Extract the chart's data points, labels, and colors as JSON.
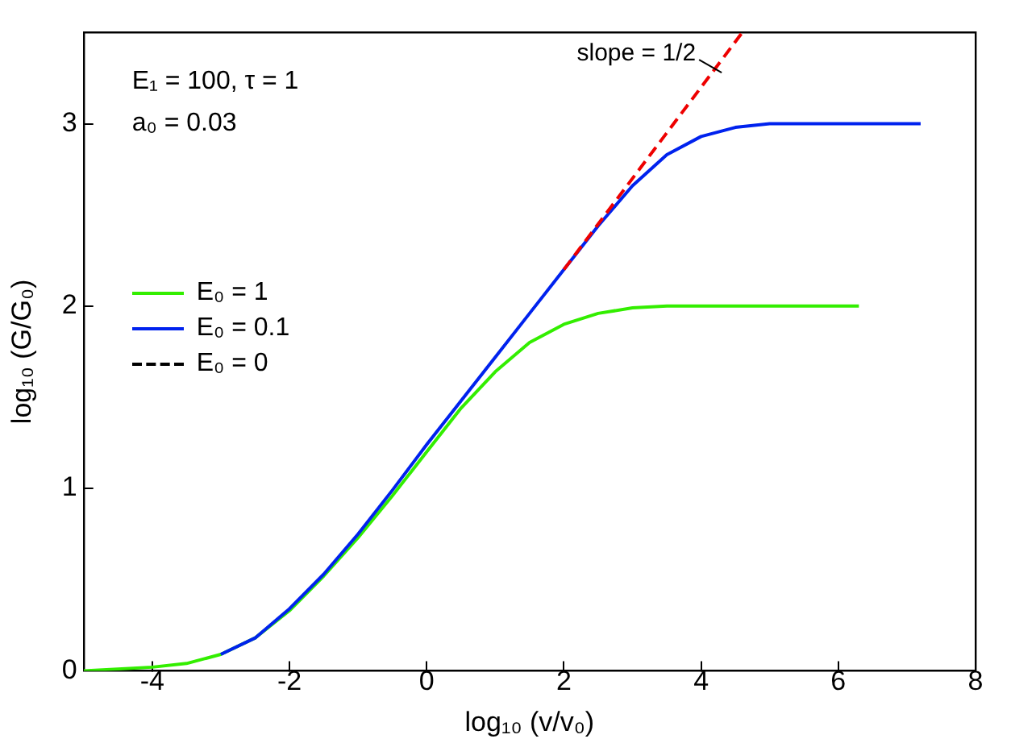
{
  "chart_data": {
    "type": "line",
    "xlabel": "log₁₀ (v/v₀)",
    "ylabel": "log₁₀ (G/G₀)",
    "xlim": [
      -5,
      8
    ],
    "xticks": [
      -4,
      -2,
      0,
      2,
      4,
      6,
      8
    ],
    "ylim": [
      0,
      3.5
    ],
    "yticks": [
      0,
      1,
      2,
      3
    ],
    "grid": false,
    "legend": "left",
    "marker": "none",
    "annotations": [
      "E₁ = 100, τ = 1",
      "a₀ = 0.03",
      {
        "text": "slope = 1/2",
        "x": 4.3,
        "y": 3.28
      }
    ],
    "series": [
      {
        "name": "E₀ = 1",
        "color": "#33ee00",
        "line_style": "solid",
        "x": [
          -5,
          -4,
          -3.5,
          -3,
          -2.5,
          -2,
          -1.5,
          -1,
          -0.5,
          0,
          0.5,
          1,
          1.5,
          2,
          2.5,
          3,
          3.5,
          4,
          5,
          6.3
        ],
        "values": [
          0.0,
          0.02,
          0.04,
          0.09,
          0.18,
          0.33,
          0.52,
          0.73,
          0.96,
          1.2,
          1.44,
          1.64,
          1.8,
          1.9,
          1.96,
          1.99,
          2.0,
          2.0,
          2.0,
          2.0
        ]
      },
      {
        "name": "E₀ = 0.1",
        "color": "#0022ee",
        "line_style": "solid",
        "x": [
          -3,
          -2.5,
          -2,
          -1.5,
          -1,
          -0.5,
          0,
          0.5,
          1,
          1.5,
          2,
          2.5,
          3,
          3.5,
          4,
          4.5,
          5,
          6,
          7.2
        ],
        "values": [
          0.09,
          0.18,
          0.34,
          0.53,
          0.75,
          0.99,
          1.24,
          1.48,
          1.72,
          1.96,
          2.2,
          2.44,
          2.66,
          2.83,
          2.93,
          2.98,
          3.0,
          3.0,
          3.0
        ]
      },
      {
        "name": "E₀ = 0",
        "color": "#000000",
        "line_style": "dashed"
      },
      {
        "color": "#ee0000",
        "line_style": "dashed",
        "x": [
          2,
          4.6
        ],
        "values": [
          2.2,
          3.5
        ]
      }
    ]
  }
}
